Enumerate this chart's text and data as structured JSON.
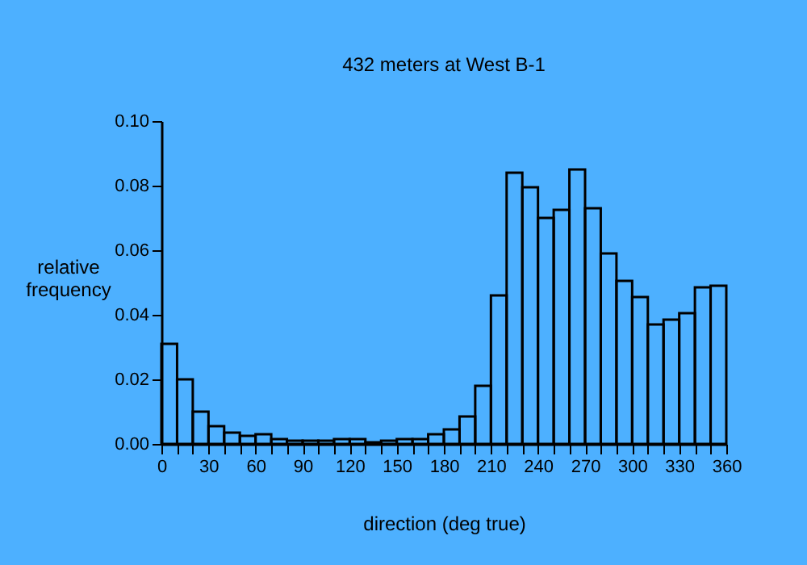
{
  "chart_data": {
    "type": "histogram",
    "title": "432 meters at West B-1",
    "xlabel": "direction (deg true)",
    "ylabel": "relative frequency",
    "bins": [
      0,
      10,
      20,
      30,
      40,
      50,
      60,
      70,
      80,
      90,
      100,
      110,
      120,
      130,
      140,
      150,
      160,
      170,
      180,
      190,
      200,
      210,
      220,
      230,
      240,
      250,
      260,
      270,
      280,
      290,
      300,
      310,
      320,
      330,
      340,
      350,
      360
    ],
    "values": [
      0.031,
      0.02,
      0.01,
      0.0055,
      0.0035,
      0.0025,
      0.003,
      0.0015,
      0.001,
      0.001,
      0.001,
      0.0015,
      0.0015,
      0.0005,
      0.001,
      0.0015,
      0.0015,
      0.003,
      0.0045,
      0.0085,
      0.018,
      0.046,
      0.084,
      0.0795,
      0.07,
      0.0725,
      0.085,
      0.073,
      0.059,
      0.0505,
      0.0455,
      0.037,
      0.0385,
      0.0405,
      0.0485,
      0.049
    ],
    "color": "#000000",
    "xlim": [
      0,
      360
    ],
    "ylim": [
      0,
      0.1
    ],
    "xticks": [
      0,
      {
        "value": 10,
        "label": null
      },
      {
        "value": 20,
        "label": null
      },
      30,
      {
        "value": 40,
        "label": null
      },
      {
        "value": 50,
        "label": null
      },
      60,
      {
        "value": 70,
        "label": null
      },
      {
        "value": 80,
        "label": null
      },
      90,
      {
        "value": 100,
        "label": null
      },
      {
        "value": 110,
        "label": null
      },
      120,
      {
        "value": 130,
        "label": null
      },
      {
        "value": 140,
        "label": null
      },
      150,
      {
        "value": 160,
        "label": null
      },
      {
        "value": 170,
        "label": null
      },
      180,
      {
        "value": 190,
        "label": null
      },
      {
        "value": 200,
        "label": null
      },
      210,
      {
        "value": 220,
        "label": null
      },
      {
        "value": 230,
        "label": null
      },
      240,
      {
        "value": 250,
        "label": null
      },
      {
        "value": 260,
        "label": null
      },
      270,
      {
        "value": 280,
        "label": null
      },
      {
        "value": 290,
        "label": null
      },
      300,
      {
        "value": 310,
        "label": null
      },
      {
        "value": 320,
        "label": null
      },
      330,
      {
        "value": 340,
        "label": null
      },
      {
        "value": 350,
        "label": null
      },
      360
    ],
    "yticks": [
      {
        "value": 0,
        "label": "0.00"
      },
      {
        "value": 0.02,
        "label": "0.02"
      },
      {
        "value": 0.04,
        "label": "0.04"
      },
      {
        "value": 0.06,
        "label": "0.06"
      },
      {
        "value": 0.08,
        "label": "0.08"
      },
      {
        "value": 0.1,
        "label": "0.10"
      }
    ],
    "grid": false
  }
}
